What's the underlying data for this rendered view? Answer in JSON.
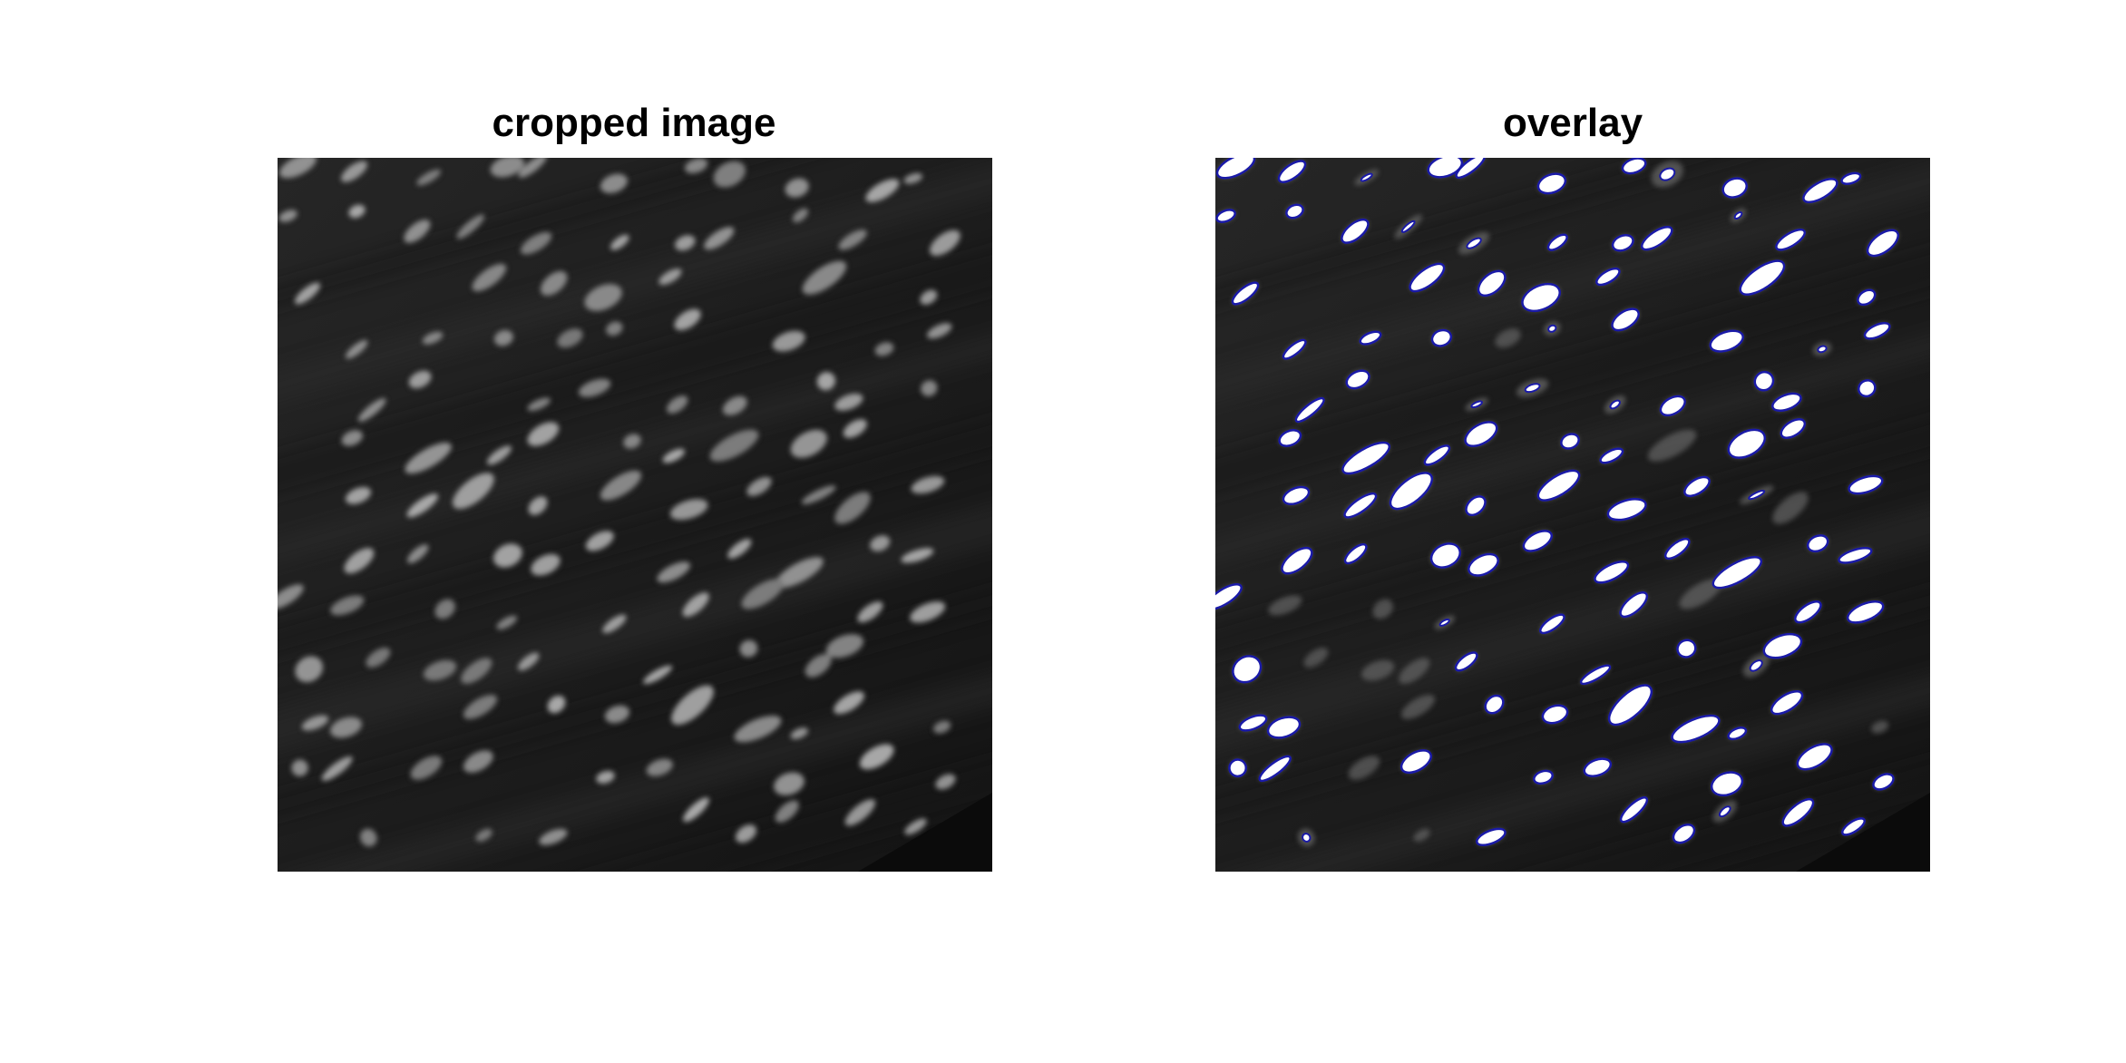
{
  "figure": {
    "panels": [
      {
        "title": "cropped image",
        "content": "grayscale fluorescence micrograph of elongated cell nuclei"
      },
      {
        "title": "overlay",
        "content": "segmentation mask (white) with blue outlines of detected nuclei"
      }
    ],
    "colors": {
      "background": "#ffffff",
      "tissue_dark": "#1b1b1b",
      "nucleus_gray": "#8a8a8a",
      "mask_fill": "#ffffff",
      "outline": "#1a1aa8"
    }
  }
}
